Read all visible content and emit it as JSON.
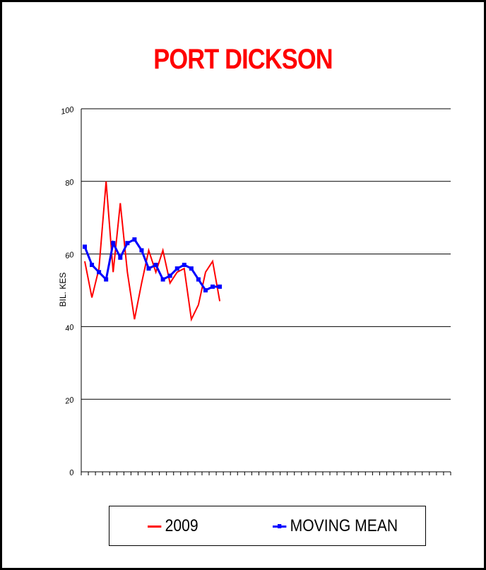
{
  "chart_data": {
    "type": "line",
    "title": "PORT DICKSON",
    "xlabel": "",
    "ylabel": "BIL. KES",
    "ylim": [
      0,
      100
    ],
    "yticks": [
      "0",
      "20",
      "40",
      "60",
      "80",
      "100"
    ],
    "grid": "horizontal",
    "legend_position": "bottom",
    "n_xticks": 52,
    "series": [
      {
        "name": "2009",
        "color": "#ff0000",
        "x": [
          1,
          2,
          3,
          4,
          5,
          6,
          7,
          8,
          9,
          10,
          11,
          12,
          13,
          14,
          15,
          16,
          17,
          18,
          19,
          20
        ],
        "values": [
          58,
          48,
          56,
          80,
          55,
          74,
          55,
          42,
          52,
          61,
          55,
          61,
          52,
          55,
          56,
          42,
          46,
          55,
          58,
          47
        ]
      },
      {
        "name": "MOVING MEAN",
        "color": "#0000ff",
        "x": [
          1,
          2,
          3,
          4,
          5,
          6,
          7,
          8,
          9,
          10,
          11,
          12,
          13,
          14,
          15,
          16,
          17,
          18,
          19,
          20
        ],
        "values": [
          62,
          57,
          55,
          53,
          63,
          59,
          63,
          64,
          61,
          56,
          57,
          53,
          54,
          56,
          57,
          56,
          53,
          50,
          51,
          51
        ]
      }
    ]
  }
}
